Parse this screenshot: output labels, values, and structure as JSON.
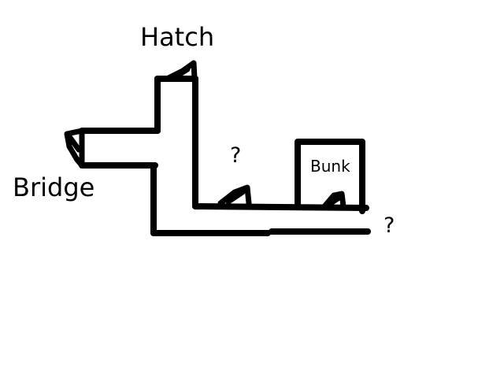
{
  "labels": {
    "hatch": "Hatch",
    "bridge": "Bridge",
    "bunk": "Bunk",
    "unknown_mid": "?",
    "unknown_right": "?"
  },
  "colors": {
    "background": "#ffffff",
    "ink": "#000000"
  }
}
